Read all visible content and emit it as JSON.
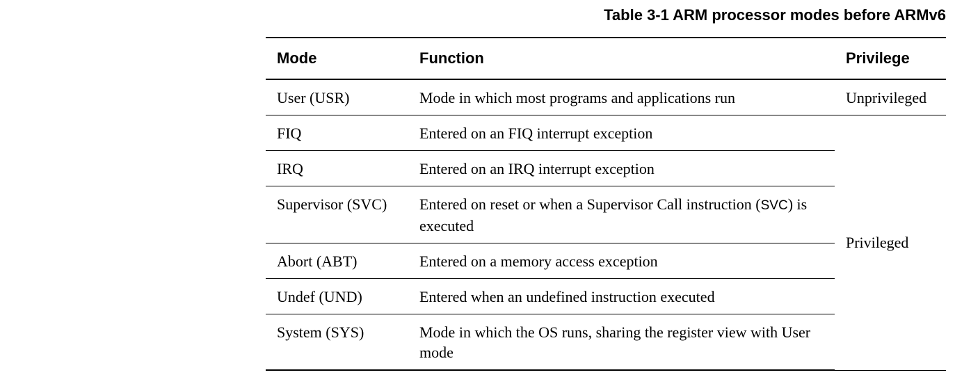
{
  "caption": "Table 3-1 ARM processor modes before ARMv6",
  "headers": {
    "mode": "Mode",
    "function": "Function",
    "privilege": "Privilege"
  },
  "rows": [
    {
      "mode": "User (USR)",
      "function": "Mode in which most programs and applications run",
      "privilege": "Unprivileged"
    },
    {
      "mode": "FIQ",
      "function": "Entered on an FIQ interrupt exception"
    },
    {
      "mode": "IRQ",
      "function": "Entered on an IRQ interrupt exception"
    },
    {
      "mode": "Supervisor (SVC)",
      "function_pre": "Entered on reset or when a Supervisor Call instruction (",
      "function_code": "SVC",
      "function_post": ") is executed"
    },
    {
      "mode": "Abort (ABT)",
      "function": "Entered on a memory access exception"
    },
    {
      "mode": "Undef (UND)",
      "function": "Entered when an undefined instruction executed"
    },
    {
      "mode": "System (SYS)",
      "function": "Mode in which the OS runs, sharing the register view with User mode"
    }
  ],
  "privileged_label": "Privileged"
}
